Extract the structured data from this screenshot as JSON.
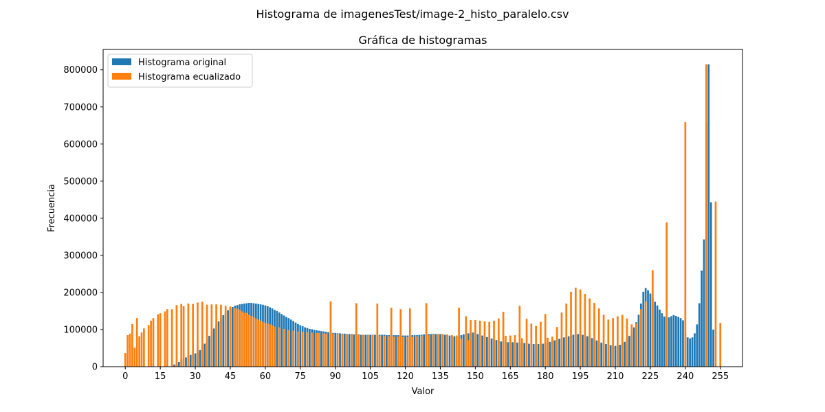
{
  "figure": {
    "suptitle": "Histograma de imagenesTest/image-2_histo_paralelo.csv"
  },
  "chart_data": {
    "type": "bar",
    "title": "Gráfica de histogramas",
    "xlabel": "Valor",
    "ylabel": "Frecuencia",
    "xlim": [
      -9.5,
      264.5
    ],
    "ylim": [
      0,
      855000
    ],
    "xticks": [
      0,
      15,
      30,
      45,
      60,
      75,
      90,
      105,
      120,
      135,
      150,
      165,
      180,
      195,
      210,
      225,
      240,
      255
    ],
    "yticks": [
      0,
      100000,
      200000,
      300000,
      400000,
      500000,
      600000,
      700000,
      800000
    ],
    "ytick_labels": [
      "0",
      "100000",
      "200000",
      "300000",
      "400000",
      "500000",
      "600000",
      "700000",
      "800000"
    ],
    "legend": {
      "position": "top-left",
      "entries": [
        "Histograma original",
        "Histograma ecualizado"
      ]
    },
    "grid": false,
    "series": [
      {
        "name": "Histograma original",
        "color": "#1f77b4",
        "x_start": 0,
        "values": [
          0,
          0,
          0,
          0,
          0,
          0,
          0,
          0,
          0,
          0,
          0,
          0,
          0,
          0,
          0,
          0,
          0,
          0,
          0,
          0,
          3000,
          6000,
          9000,
          13000,
          17000,
          21000,
          25000,
          29000,
          32000,
          34000,
          36000,
          39000,
          45000,
          53000,
          62000,
          72000,
          83000,
          93000,
          103000,
          113000,
          122000,
          131000,
          139000,
          146000,
          152000,
          157000,
          161000,
          164000,
          166000,
          168000,
          169000,
          170000,
          171000,
          172000,
          172000,
          171000,
          170000,
          169000,
          168000,
          167000,
          165000,
          163000,
          160000,
          157000,
          153000,
          150000,
          146000,
          142000,
          138000,
          134000,
          131000,
          127000,
          123000,
          119000,
          115000,
          112000,
          109000,
          106000,
          104000,
          102000,
          101000,
          99000,
          98000,
          97000,
          96000,
          95000,
          94000,
          93000,
          92000,
          91000,
          91000,
          90000,
          90000,
          89000,
          89000,
          88000,
          88000,
          88000,
          87000,
          87000,
          87000,
          86000,
          86000,
          86000,
          86000,
          86000,
          86000,
          86000,
          86000,
          86000,
          86000,
          86000,
          85000,
          85000,
          85000,
          85000,
          85000,
          85000,
          84000,
          84000,
          84000,
          84000,
          84000,
          85000,
          85000,
          85000,
          86000,
          86000,
          87000,
          87000,
          88000,
          88000,
          88000,
          88000,
          88000,
          88000,
          87000,
          86000,
          85000,
          84000,
          83000,
          82000,
          82000,
          83000,
          85000,
          87000,
          88000,
          90000,
          91000,
          92000,
          90000,
          88000,
          86000,
          84000,
          82000,
          80000,
          78000,
          76000,
          74000,
          72000,
          70000,
          68000,
          67000,
          66000,
          66000,
          66000,
          66000,
          66000,
          65000,
          65000,
          64000,
          64000,
          63000,
          62000,
          62000,
          61000,
          61000,
          61000,
          61000,
          62000,
          63000,
          65000,
          67000,
          69000,
          71000,
          73000,
          75000,
          77000,
          79000,
          80000,
          82000,
          84000,
          86000,
          87000,
          88000,
          87000,
          86000,
          84000,
          82000,
          80000,
          77000,
          74000,
          71000,
          68000,
          65000,
          63000,
          61000,
          59000,
          58000,
          57000,
          56000,
          57000,
          59000,
          62000,
          67000,
          74000,
          83000,
          94000,
          106000,
          120000,
          140000,
          170000,
          202000,
          212000,
          206000,
          197000,
          186000,
          175000,
          165000,
          154000,
          144000,
          135000,
          128000,
          133000,
          136000,
          139000,
          137000,
          134000,
          131000,
          125000,
          89000,
          79000,
          76000,
          79000,
          90000,
          114000,
          171000,
          259000,
          343000,
          659000,
          815000,
          443000,
          100000,
          0
        ],
        "overrides": {
          "248": 259000,
          "249": 343000,
          "250": 659000,
          "251": 815000,
          "252": 443000,
          "253": 100000
        }
      },
      {
        "name": "Histograma ecualizado",
        "color": "#ff7f0e",
        "x_start": 0,
        "values": [
          37000,
          85000,
          89000,
          115000,
          51000,
          131000,
          82000,
          92000,
          103000,
          0,
          112000,
          124000,
          131000,
          0,
          141000,
          144000,
          149000,
          0,
          155000,
          155000,
          0,
          166000,
          0,
          169000,
          163000,
          0,
          170000,
          0,
          169000,
          0,
          173000,
          0,
          175000,
          0,
          167000,
          0,
          168000,
          0,
          168000,
          0,
          167000,
          0,
          164000,
          0,
          162000,
          0,
          158000,
          0,
          156000,
          0,
          154000,
          0,
          149000,
          0,
          145000,
          0,
          140000,
          0,
          133000,
          0,
          127000,
          0,
          121000,
          0,
          116000,
          0,
          111000,
          0,
          106000,
          0,
          102000,
          0,
          99000,
          0,
          97000,
          0,
          95000,
          0,
          94000,
          0,
          93000,
          0,
          176000,
          91000,
          0,
          90000,
          0,
          89000,
          0,
          89000,
          0,
          88000,
          0,
          88000,
          0,
          171000,
          87000,
          0,
          86000,
          0,
          86000,
          0,
          85000,
          0,
          170000,
          84000,
          0,
          83000,
          0,
          159000,
          82000,
          0,
          81000,
          0,
          155000,
          81000,
          0,
          80000,
          0,
          157000,
          80000,
          0,
          82000,
          0,
          84000,
          0,
          171000,
          85000,
          0,
          86000,
          0,
          88000,
          0,
          88000,
          0,
          87000,
          0,
          85000,
          0,
          84000,
          0,
          159000,
          76000,
          0,
          136000,
          71000,
          0,
          126000,
          0,
          126000,
          0,
          124000,
          0,
          122000,
          0,
          121000,
          0,
          124000,
          0,
          130000,
          0,
          148000,
          0,
          83000,
          0,
          84000,
          0,
          85000,
          0,
          164000,
          77000,
          0,
          129000,
          0,
          116000,
          0,
          110000,
          0,
          121000,
          0,
          142000,
          0,
          78000,
          0,
          81000,
          0,
          107000,
          0,
          146000,
          0,
          170000,
          0,
          202000,
          0,
          213000,
          0,
          208000,
          0,
          196000,
          0,
          184000,
          0,
          172000,
          0,
          157000,
          0,
          140000,
          0,
          127000,
          0,
          131000,
          0,
          136000,
          0,
          140000,
          0,
          130000,
          0,
          114000,
          0,
          117000,
          0,
          155000,
          0,
          176000,
          0,
          260000,
          0,
          389000,
          0,
          0,
          0,
          0,
          0,
          0,
          0,
          659000,
          0,
          0,
          0,
          0,
          0,
          0,
          0,
          0,
          815000,
          0,
          0,
          0,
          445000,
          0,
          0,
          0,
          0,
          0,
          0,
          0,
          118000
        ],
        "explicit": [
          [
            0,
            37000
          ],
          [
            1,
            85000
          ],
          [
            2,
            89000
          ],
          [
            3,
            115000
          ],
          [
            4,
            51000
          ],
          [
            5,
            131000
          ],
          [
            6,
            82000
          ],
          [
            7,
            92000
          ],
          [
            8,
            103000
          ],
          [
            10,
            112000
          ],
          [
            11,
            124000
          ],
          [
            12,
            131000
          ],
          [
            14,
            141000
          ],
          [
            15,
            144000
          ],
          [
            17,
            149000
          ],
          [
            18,
            155000
          ],
          [
            20,
            155000
          ],
          [
            22,
            166000
          ],
          [
            24,
            169000
          ],
          [
            25,
            163000
          ],
          [
            27,
            170000
          ],
          [
            29,
            169000
          ],
          [
            31,
            173000
          ],
          [
            33,
            175000
          ],
          [
            35,
            167000
          ],
          [
            37,
            168000
          ],
          [
            39,
            168000
          ],
          [
            41,
            167000
          ],
          [
            43,
            164000
          ],
          [
            45,
            162000
          ],
          [
            47,
            158000
          ],
          [
            48,
            156000
          ],
          [
            49,
            154000
          ],
          [
            50,
            149000
          ],
          [
            51,
            145000
          ],
          [
            52,
            145000
          ],
          [
            53,
            140000
          ],
          [
            54,
            137000
          ],
          [
            55,
            133000
          ],
          [
            56,
            130000
          ],
          [
            57,
            127000
          ],
          [
            58,
            124000
          ],
          [
            59,
            121000
          ],
          [
            60,
            118000
          ],
          [
            61,
            116000
          ],
          [
            62,
            114000
          ],
          [
            63,
            111000
          ],
          [
            64,
            108000
          ],
          [
            66,
            106000
          ],
          [
            68,
            102000
          ],
          [
            70,
            99000
          ],
          [
            72,
            97000
          ],
          [
            74,
            95000
          ],
          [
            76,
            94000
          ],
          [
            78,
            93000
          ],
          [
            80,
            92000
          ],
          [
            82,
            91000
          ],
          [
            83,
            91000
          ],
          [
            85,
            90000
          ],
          [
            86,
            89000
          ],
          [
            88,
            176000
          ],
          [
            89,
            89000
          ],
          [
            91,
            88000
          ],
          [
            93,
            88000
          ],
          [
            95,
            87000
          ],
          [
            97,
            87000
          ],
          [
            99,
            171000
          ],
          [
            100,
            86000
          ],
          [
            102,
            86000
          ],
          [
            104,
            85000
          ],
          [
            106,
            85000
          ],
          [
            108,
            170000
          ],
          [
            109,
            84000
          ],
          [
            111,
            83000
          ],
          [
            113,
            82000
          ],
          [
            114,
            159000
          ],
          [
            115,
            81000
          ],
          [
            117,
            81000
          ],
          [
            118,
            155000
          ],
          [
            119,
            80000
          ],
          [
            121,
            80000
          ],
          [
            122,
            157000
          ],
          [
            123,
            80000
          ],
          [
            125,
            82000
          ],
          [
            127,
            84000
          ],
          [
            129,
            171000
          ],
          [
            130,
            85000
          ],
          [
            132,
            86000
          ],
          [
            134,
            88000
          ],
          [
            136,
            88000
          ],
          [
            138,
            87000
          ],
          [
            140,
            85000
          ],
          [
            142,
            84000
          ],
          [
            143,
            159000
          ],
          [
            144,
            76000
          ],
          [
            146,
            136000
          ],
          [
            147,
            71000
          ],
          [
            148,
            126000
          ],
          [
            150,
            126000
          ],
          [
            152,
            124000
          ],
          [
            154,
            122000
          ],
          [
            156,
            121000
          ],
          [
            158,
            124000
          ],
          [
            160,
            130000
          ],
          [
            162,
            148000
          ],
          [
            163,
            83000
          ],
          [
            165,
            84000
          ],
          [
            167,
            85000
          ],
          [
            169,
            164000
          ],
          [
            170,
            77000
          ],
          [
            172,
            129000
          ],
          [
            174,
            116000
          ],
          [
            176,
            110000
          ],
          [
            178,
            121000
          ],
          [
            180,
            142000
          ],
          [
            181,
            78000
          ],
          [
            183,
            81000
          ],
          [
            185,
            107000
          ],
          [
            187,
            146000
          ],
          [
            189,
            170000
          ],
          [
            191,
            202000
          ],
          [
            193,
            213000
          ],
          [
            195,
            208000
          ],
          [
            197,
            196000
          ],
          [
            199,
            184000
          ],
          [
            201,
            172000
          ],
          [
            203,
            157000
          ],
          [
            205,
            140000
          ],
          [
            207,
            127000
          ],
          [
            209,
            131000
          ],
          [
            211,
            136000
          ],
          [
            213,
            140000
          ],
          [
            215,
            130000
          ],
          [
            217,
            114000
          ],
          [
            219,
            117000
          ],
          [
            221,
            155000
          ],
          [
            223,
            176000
          ],
          [
            226,
            260000
          ],
          [
            232,
            389000
          ],
          [
            240,
            659000
          ],
          [
            249,
            815000
          ],
          [
            253,
            445000
          ],
          [
            255,
            118000
          ]
        ]
      }
    ]
  }
}
